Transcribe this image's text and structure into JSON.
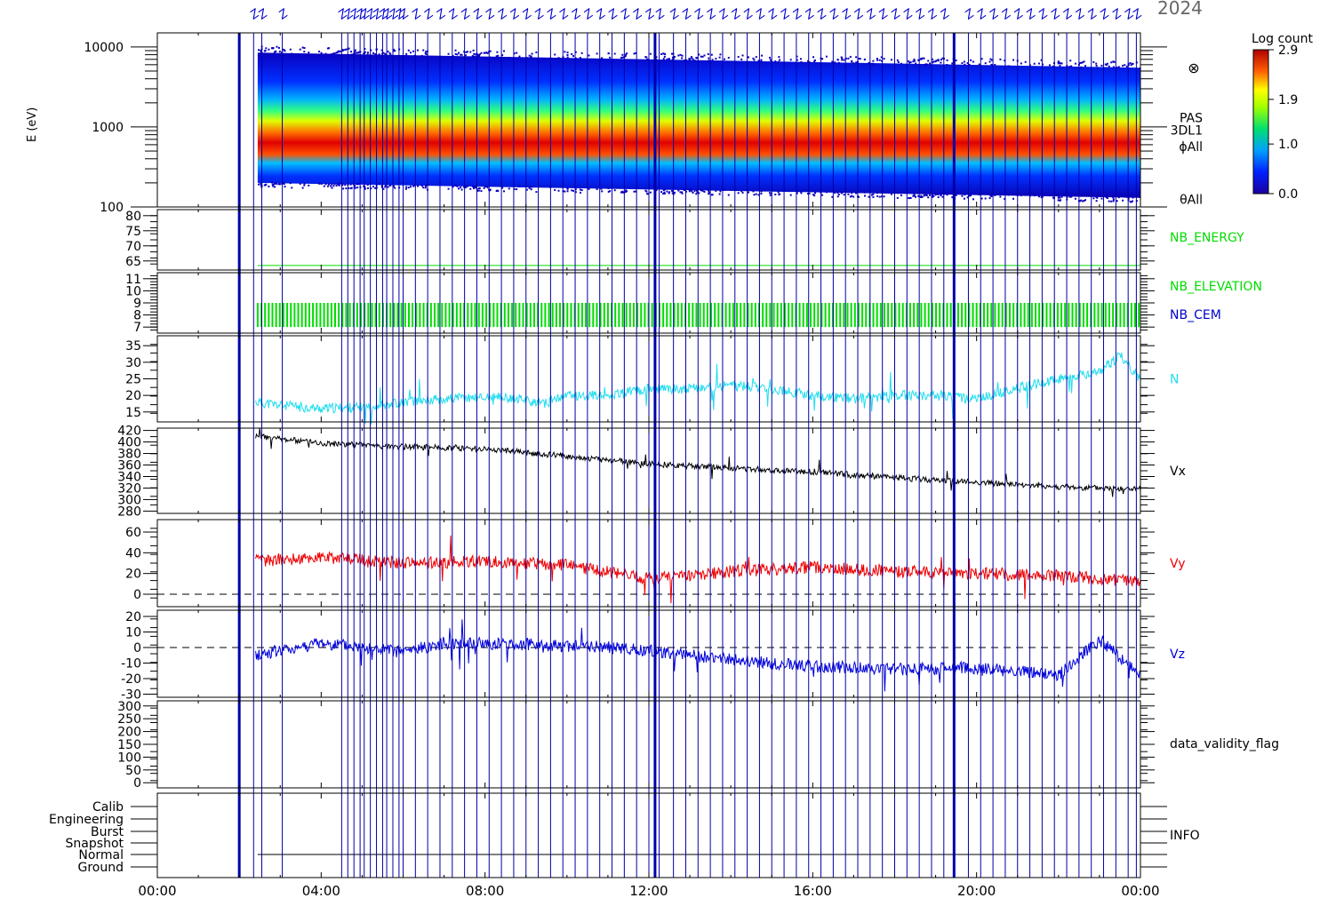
{
  "header": {
    "date_text": "2024",
    "color_header": "#0000cc"
  },
  "time_axis": {
    "ticks": [
      "00:00",
      "04:00",
      "08:00",
      "12:00",
      "16:00",
      "20:00",
      "00:00"
    ],
    "start_hour": 0,
    "end_hour": 24
  },
  "panels": {
    "spectrogram": {
      "ylabel": "E (eV)",
      "ytick_labels": [
        "10000",
        "1000",
        "100"
      ],
      "ytick_values": [
        10000,
        1000,
        100
      ],
      "ylim": [
        100,
        15000
      ],
      "yscale": "log",
      "right_labels": [
        "PAS",
        "3DL1",
        "ϕAll",
        "θAll"
      ],
      "colorbar": {
        "title": "Log count",
        "tick_labels": [
          "2.9",
          "1.9",
          "1.0",
          "0.0"
        ],
        "tick_values": [
          2.9,
          1.9,
          1.0,
          0.0
        ],
        "range": [
          0.0,
          2.9
        ]
      }
    },
    "nb_energy": {
      "ytick_labels": [
        "80",
        "75",
        "70",
        "65"
      ],
      "ytick_values": [
        80,
        75,
        70,
        65
      ],
      "ylim": [
        62,
        82
      ],
      "right_label": "NB_ENERGY",
      "color": "#00dd00",
      "value": 63.5
    },
    "nb_elevation": {
      "ytick_labels": [
        "11",
        "10",
        "9",
        "8",
        "7"
      ],
      "ytick_values": [
        11,
        10,
        9,
        8,
        7
      ],
      "ylim": [
        6.5,
        11.5
      ],
      "right_labels": [
        "NB_ELEVATION",
        "NB_CEM"
      ],
      "label_colors": [
        "#00dd00",
        "#0000cc"
      ],
      "range": [
        7,
        9
      ]
    },
    "density": {
      "ytick_labels": [
        "35",
        "30",
        "25",
        "20",
        "15"
      ],
      "ytick_values": [
        35,
        30,
        25,
        20,
        15
      ],
      "ylim": [
        12,
        38
      ],
      "right_label": "N",
      "color": "#22ddee",
      "x_hours": [
        2.4,
        3,
        4,
        5,
        6,
        7,
        8,
        9,
        9.3,
        10,
        11,
        12,
        13,
        14,
        15,
        16,
        17,
        18,
        19,
        20,
        21,
        22,
        23,
        23.5,
        24
      ],
      "values": [
        18,
        17,
        16,
        16.5,
        18,
        19,
        19.5,
        19,
        17,
        20,
        20,
        22,
        22,
        23,
        22,
        20,
        19,
        20,
        20,
        19,
        22,
        25,
        27,
        32,
        25
      ]
    },
    "vx": {
      "ytick_labels": [
        "420",
        "400",
        "380",
        "360",
        "340",
        "320",
        "300",
        "280"
      ],
      "ytick_values": [
        420,
        400,
        380,
        360,
        340,
        320,
        300,
        280
      ],
      "ylim": [
        276,
        424
      ],
      "right_label": "Vx",
      "color": "#000000",
      "x_hours": [
        2.4,
        4,
        6,
        8,
        10,
        12,
        14,
        16,
        18,
        20,
        22,
        24
      ],
      "values": [
        410,
        398,
        392,
        388,
        375,
        362,
        355,
        348,
        338,
        330,
        322,
        318
      ]
    },
    "vy": {
      "ytick_labels": [
        "60",
        "40",
        "20",
        "0"
      ],
      "ytick_values": [
        60,
        40,
        20,
        0
      ],
      "ylim": [
        -12,
        72
      ],
      "right_label": "Vy",
      "color": "#ee0000",
      "zero_line": true,
      "x_hours": [
        2.4,
        4,
        6,
        8,
        10,
        12,
        14,
        16,
        18,
        20,
        22,
        24
      ],
      "values": [
        32,
        36,
        30,
        32,
        28,
        15,
        22,
        26,
        22,
        20,
        18,
        12
      ]
    },
    "vz": {
      "ytick_labels": [
        "20",
        "10",
        "0",
        "-10",
        "-20",
        "-30"
      ],
      "ytick_values": [
        20,
        10,
        0,
        -10,
        -20,
        -30
      ],
      "ylim": [
        -32,
        24
      ],
      "right_label": "Vz",
      "color": "#0000dd",
      "zero_line": true,
      "x_hours": [
        2.4,
        4,
        6,
        7,
        9,
        11,
        12,
        14,
        16,
        18,
        20,
        22,
        23,
        24
      ],
      "values": [
        -5,
        3,
        -3,
        3,
        2,
        0,
        -2,
        -8,
        -12,
        -14,
        -13,
        -18,
        5,
        -18
      ]
    },
    "validity": {
      "ytick_labels": [
        "300",
        "250",
        "200",
        "150",
        "100",
        "50",
        "0"
      ],
      "ytick_values": [
        300,
        250,
        200,
        150,
        100,
        50,
        0
      ],
      "ylim": [
        -20,
        320
      ],
      "right_label": "data_validity_flag"
    },
    "info": {
      "ytick_labels": [
        "Calib",
        "Engineering",
        "Burst",
        "Snapshot",
        "Normal",
        "Ground"
      ],
      "right_label": "INFO"
    }
  },
  "vertical_markers": {
    "color": "#0000aa",
    "thick_hours": [
      2.0,
      12.15,
      19.45
    ],
    "thin_hours": [
      2.35,
      2.55,
      3.05,
      4.5,
      4.65,
      4.8,
      4.95,
      5.05,
      5.2,
      5.35,
      5.5,
      5.6,
      5.75,
      5.9,
      6.0,
      6.3,
      6.6,
      6.9,
      7.2,
      7.5,
      7.8,
      8.1,
      8.4,
      8.7,
      9.0,
      9.3,
      9.6,
      9.9,
      10.2,
      10.5,
      10.8,
      11.1,
      11.4,
      11.7,
      12.0,
      12.25,
      12.6,
      12.9,
      13.2,
      13.5,
      13.8,
      14.1,
      14.4,
      14.7,
      15.0,
      15.3,
      15.6,
      15.9,
      16.2,
      16.5,
      16.8,
      17.1,
      17.4,
      17.7,
      18.0,
      18.3,
      18.6,
      18.9,
      19.2,
      19.8,
      20.1,
      20.4,
      20.7,
      21.0,
      21.3,
      21.6,
      21.9,
      22.2,
      22.5,
      22.8,
      23.1,
      23.4,
      23.7,
      23.9
    ]
  }
}
